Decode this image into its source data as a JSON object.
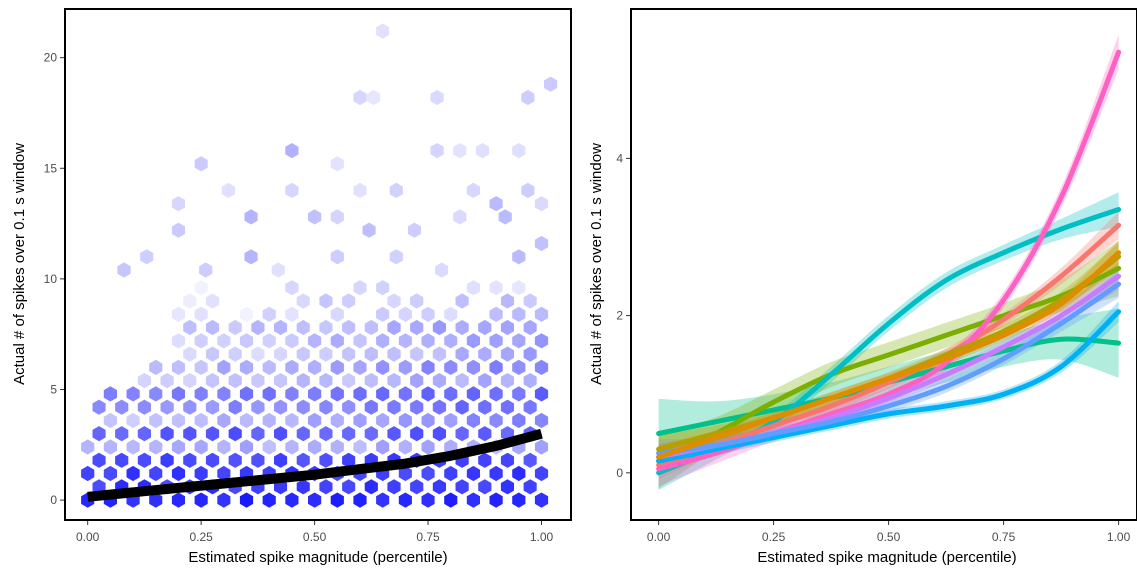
{
  "chart_data": [
    {
      "type": "hexbin",
      "title": "",
      "xlabel": "Estimated spike magnitude (percentile)",
      "ylabel": "Actual # of spikes over 0.1 s window",
      "xlim": [
        -0.05,
        1.065
      ],
      "ylim": [
        -0.9,
        22.2
      ],
      "xticks": [
        "0.00",
        "0.25",
        "0.50",
        "0.75",
        "1.00"
      ],
      "yticks": [
        "0",
        "5",
        "10",
        "15",
        "20"
      ],
      "grid": false,
      "fill_color": "#1a1aff",
      "trend_line": {
        "color": "#000000",
        "x": [
          0.0,
          0.1,
          0.2,
          0.3,
          0.4,
          0.5,
          0.6,
          0.7,
          0.8,
          0.9,
          1.0
        ],
        "y": [
          0.15,
          0.35,
          0.55,
          0.75,
          0.95,
          1.15,
          1.4,
          1.65,
          2.0,
          2.45,
          3.0
        ]
      },
      "sparse_points": [
        [
          0.65,
          21.2
        ],
        [
          0.6,
          18.2
        ],
        [
          0.63,
          18.2
        ],
        [
          0.77,
          18.2
        ],
        [
          0.97,
          18.2
        ],
        [
          1.02,
          18.8
        ],
        [
          0.25,
          15.2
        ],
        [
          0.45,
          15.8
        ],
        [
          0.55,
          15.2
        ],
        [
          0.77,
          15.8
        ],
        [
          0.82,
          15.8
        ],
        [
          0.87,
          15.8
        ],
        [
          0.95,
          15.8
        ],
        [
          0.2,
          13.4
        ],
        [
          0.31,
          14.0
        ],
        [
          0.45,
          14.0
        ],
        [
          0.6,
          14.0
        ],
        [
          0.68,
          14.0
        ],
        [
          0.85,
          14.0
        ],
        [
          0.9,
          13.4
        ],
        [
          0.97,
          14.0
        ],
        [
          0.2,
          12.2
        ],
        [
          0.36,
          12.8
        ],
        [
          0.5,
          12.8
        ],
        [
          0.55,
          12.8
        ],
        [
          0.62,
          12.2
        ],
        [
          0.72,
          12.2
        ],
        [
          0.82,
          12.8
        ],
        [
          0.92,
          12.8
        ],
        [
          1.0,
          13.4
        ],
        [
          0.08,
          10.4
        ],
        [
          0.13,
          11.0
        ],
        [
          0.26,
          10.4
        ],
        [
          0.36,
          11.0
        ],
        [
          0.42,
          10.4
        ],
        [
          0.55,
          11.0
        ],
        [
          0.68,
          11.0
        ],
        [
          0.78,
          10.4
        ],
        [
          0.95,
          11.0
        ],
        [
          1.0,
          11.6
        ]
      ]
    },
    {
      "type": "line",
      "title": "",
      "xlabel": "Estimated spike magnitude (percentile)",
      "ylabel": "Actual # of spikes over 0.1 s window",
      "xlim": [
        -0.06,
        1.04
      ],
      "ylim": [
        -0.6,
        5.9
      ],
      "xticks": [
        "0.00",
        "0.25",
        "0.50",
        "0.75",
        "1.00"
      ],
      "yticks": [
        "0",
        "2",
        "4"
      ],
      "grid": false,
      "x": [
        0.0,
        0.125,
        0.25,
        0.375,
        0.5,
        0.625,
        0.75,
        0.875,
        1.0
      ],
      "series": [
        {
          "color": "#00c08b",
          "values": [
            0.5,
            0.65,
            0.8,
            0.95,
            1.15,
            1.35,
            1.55,
            1.7,
            1.65
          ],
          "band": 0.2
        },
        {
          "color": "#7cae00",
          "values": [
            0.15,
            0.5,
            0.9,
            1.25,
            1.5,
            1.75,
            2.0,
            2.25,
            2.6
          ],
          "band": 0.16
        },
        {
          "color": "#00bfc4",
          "values": [
            0.0,
            0.3,
            0.65,
            1.25,
            1.9,
            2.45,
            2.8,
            3.1,
            3.35
          ],
          "band": 0.1
        },
        {
          "color": "#f8766d",
          "values": [
            0.1,
            0.35,
            0.6,
            0.85,
            1.15,
            1.5,
            1.95,
            2.5,
            3.15
          ],
          "band": 0.08
        },
        {
          "color": "#ff61c3",
          "values": [
            0.05,
            0.25,
            0.5,
            0.75,
            1.0,
            1.4,
            2.2,
            3.5,
            5.35
          ],
          "band": 0.1
        },
        {
          "color": "#00b0f6",
          "values": [
            0.15,
            0.3,
            0.45,
            0.6,
            0.75,
            0.85,
            1.0,
            1.35,
            2.05
          ],
          "band": 0.06
        },
        {
          "color": "#c77cff",
          "values": [
            0.2,
            0.35,
            0.5,
            0.7,
            0.95,
            1.25,
            1.6,
            2.0,
            2.5
          ],
          "band": 0.08
        },
        {
          "color": "#619cff",
          "values": [
            0.25,
            0.35,
            0.5,
            0.65,
            0.85,
            1.1,
            1.45,
            1.9,
            2.4
          ],
          "band": 0.08
        },
        {
          "color": "#b79f00",
          "values": [
            0.3,
            0.5,
            0.7,
            0.95,
            1.2,
            1.5,
            1.8,
            2.2,
            2.75
          ],
          "band": 0.08
        },
        {
          "color": "#de8c00",
          "values": [
            0.2,
            0.45,
            0.7,
            0.95,
            1.2,
            1.45,
            1.75,
            2.15,
            2.8
          ],
          "band": 0.07
        }
      ]
    }
  ]
}
